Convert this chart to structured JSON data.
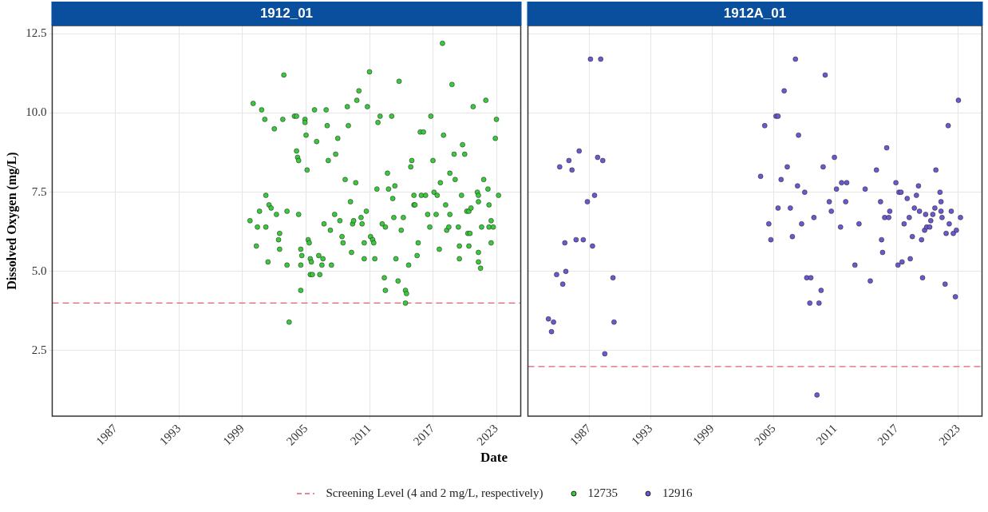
{
  "chart_data": [
    {
      "type": "scatter",
      "title": "1912_01",
      "xlabel": "Date",
      "ylabel": "Dissolved Oxygen (mg/L)",
      "xlim": [
        1981.0,
        2025.3
      ],
      "ylim": [
        0.43,
        12.76
      ],
      "xticks": [
        1987,
        1993,
        1999,
        2005,
        2011,
        2017,
        2023
      ],
      "yticks": [
        {
          "value": 2.5,
          "label": "2.5"
        },
        {
          "value": 5,
          "label": "5.0"
        },
        {
          "value": 7.5,
          "label": "7.5"
        },
        {
          "value": 10,
          "label": "10.0"
        },
        {
          "value": 12.5,
          "label": "12.5"
        }
      ],
      "grid": true,
      "legend": "bottom",
      "marker": "circle",
      "ref_lines": [
        {
          "axis": "y",
          "value": 4,
          "label": "Screening Level (4 and 2 mg/L, respectively)",
          "color": "#e06070",
          "line_style": "dashed"
        }
      ],
      "x": [
        2000.0,
        2000.8,
        2001.1,
        2002.0,
        2002.8,
        2002.9,
        2003.9,
        2004.1,
        2004.1,
        2004.2,
        2004.3,
        2004.9,
        2004.9,
        2005.0,
        2005.1,
        2005.8,
        2006.0,
        2006.9,
        2007.0,
        2007.1,
        2007.8,
        2008.0,
        2008.9,
        2009.0,
        2008.7,
        2009.2,
        2009.7,
        2009.8,
        2010.0,
        2010.8,
        2011.0,
        2011.7,
        2011.8,
        2012.0,
        2012.7,
        2012.8,
        2013.1,
        2013.2,
        2013.4,
        2013.8,
        2014.9,
        2015.0,
        2015.2,
        2015.2,
        2015.3,
        2015.8,
        2016.1,
        2015.9,
        2016.3,
        2016.8,
        2017.0,
        2017.1,
        2017.4,
        2017.7,
        2017.9,
        2018.0,
        2018.2,
        2018.6,
        2018.8,
        2019.0,
        2019.1,
        2019.7,
        2019.8,
        2020.0,
        2020.2,
        2020.4,
        2020.6,
        2020.8,
        2021.2,
        2021.3,
        2021.3,
        2021.8,
        2022.0,
        2022.2,
        2022.3,
        2022.9,
        2023.0,
        2023.2,
        2000.6,
        2001.2,
        2001.5,
        2001.7,
        2002.2,
        2003.2,
        2004.3,
        2007.7,
        2010.7,
        2013.3,
        2016.5,
        2017.3,
        2018.6,
        1999.7,
        2000.4,
        2000.3,
        2001.2,
        2001.4,
        2002.4,
        2002.5,
        2002.5,
        2003.2,
        2003.4,
        2004.5,
        2004.5,
        2004.5,
        2004.6,
        2005.2,
        2005.3,
        2005.4,
        2005.5,
        2005.4,
        2005.6,
        2006.2,
        2006.3,
        2006.5,
        2006.6,
        2006.7,
        2007.3,
        2007.4,
        2008.2,
        2008.4,
        2008.5,
        2009.3,
        2009.4,
        2009.5,
        2010.2,
        2010.3,
        2010.5,
        2010.5,
        2011.1,
        2011.3,
        2011.4,
        2011.5,
        2012.2,
        2012.4,
        2012.5,
        2012.5,
        2013.5,
        2013.7,
        2014.0,
        2014.2,
        2014.4,
        2014.5,
        2014.4,
        2014.7,
        2015.5,
        2015.6,
        2016.7,
        2017.6,
        2018.3,
        2018.5,
        2019.4,
        2019.5,
        2019.5,
        2020.3,
        2020.5,
        2020.4,
        2021.3,
        2021.3,
        2021.5,
        2021.6,
        2022.5,
        2022.3,
        2022.7,
        2022.5
      ],
      "series": [
        {
          "name": "12735",
          "color": "#3cc83c",
          "values": [
            10.3,
            10.1,
            9.8,
            9.5,
            9.8,
            11.2,
            9.9,
            9.9,
            8.8,
            8.6,
            8.5,
            9.8,
            9.7,
            9.3,
            8.2,
            10.1,
            9.1,
            10.1,
            9.6,
            8.5,
            8.7,
            9.2,
            10.2,
            9.6,
            7.9,
            7.2,
            7.8,
            10.4,
            10.7,
            10.2,
            11.3,
            7.6,
            9.7,
            9.9,
            8.1,
            7.6,
            9.9,
            7.3,
            7.7,
            11.0,
            8.3,
            8.5,
            7.4,
            7.1,
            7.1,
            9.4,
            9.4,
            7.4,
            7.4,
            9.9,
            8.5,
            7.5,
            7.4,
            7.8,
            12.2,
            9.3,
            7.1,
            8.1,
            10.9,
            8.7,
            7.9,
            7.4,
            9.0,
            8.7,
            6.9,
            6.9,
            7.0,
            10.2,
            7.5,
            7.4,
            7.2,
            7.9,
            10.4,
            7.6,
            7.1,
            9.2,
            9.8,
            7.4,
            6.9,
            7.4,
            7.1,
            7.0,
            6.8,
            6.9,
            6.8,
            6.8,
            6.9,
            6.7,
            6.8,
            6.8,
            6.8,
            6.6,
            6.4,
            5.8,
            6.4,
            5.3,
            6.0,
            6.2,
            5.7,
            5.2,
            3.4,
            5.7,
            5.2,
            4.4,
            5.5,
            6.0,
            5.9,
            5.4,
            5.3,
            4.9,
            4.9,
            5.5,
            4.9,
            5.2,
            5.4,
            6.5,
            6.3,
            5.2,
            6.6,
            6.1,
            5.9,
            5.6,
            6.5,
            6.6,
            6.7,
            6.5,
            5.9,
            5.4,
            6.1,
            6.0,
            5.9,
            5.4,
            6.5,
            4.8,
            6.4,
            4.4,
            5.4,
            4.7,
            6.3,
            6.7,
            4.4,
            4.3,
            4.0,
            5.2,
            5.5,
            5.9,
            6.4,
            5.7,
            6.3,
            6.4,
            6.4,
            5.8,
            5.4,
            6.2,
            6.2,
            5.8,
            5.6,
            5.3,
            5.1,
            6.4,
            6.6,
            6.4,
            6.4,
            5.9
          ]
        }
      ]
    },
    {
      "type": "scatter",
      "title": "1912A_01",
      "xlim": [
        1981.0,
        2025.3
      ],
      "ylim": [
        0.43,
        12.76
      ],
      "xticks": [
        1987,
        1993,
        1999,
        2005,
        2011,
        2017,
        2023
      ],
      "yticks": [
        2.5,
        5,
        7.5,
        10,
        12.5
      ],
      "tick_labels": "x",
      "grid": true,
      "legend": "bottom",
      "marker": "circle",
      "ref_lines": [
        {
          "axis": "y",
          "value": 2,
          "color": "#e06070",
          "line_style": "dashed"
        }
      ],
      "x": [
        1987.1,
        1988.1,
        1986.0,
        1985.0,
        1984.1,
        1985.3,
        1987.8,
        1988.3,
        1986.8,
        1987.5,
        2007.1,
        2010.0,
        2006.0,
        2005.2,
        2005.4,
        2004.1,
        2023.0,
        2022.0,
        2007.4,
        2016.0,
        2010.9,
        2006.3,
        2009.8,
        2003.7,
        2015.0,
        2020.8,
        2005.7,
        2007.3,
        2008.0,
        2011.1,
        2011.6,
        2012.1,
        2013.9,
        2016.9,
        2017.2,
        2017.4,
        2018.0,
        2018.9,
        2019.1,
        2021.2,
        2010.4,
        2012.0,
        2015.4,
        2021.3,
        2005.4,
        2006.6,
        2010.6,
        2016.3,
        2018.7,
        2019.2,
        2019.8,
        2020.5,
        2020.7,
        2021.3,
        2022.3,
        2008.9,
        2015.8,
        2016.2,
        2018.2,
        2021.4,
        2023.2,
        1984.6,
        1985.7,
        1986.4,
        1987.3,
        1983.8,
        1984.7,
        1984.4,
        1983.0,
        1983.5,
        1983.3,
        1989.3,
        1989.4,
        1988.5,
        2004.5,
        2004.7,
        2006.8,
        2007.7,
        2011.5,
        2013.3,
        2012.9,
        2014.4,
        2008.2,
        2008.6,
        2009.6,
        2008.5,
        2009.4,
        2009.2,
        2015.5,
        2015.6,
        2017.1,
        2017.5,
        2018.3,
        2017.7,
        2018.5,
        2019.4,
        2019.5,
        2019.7,
        2019.9,
        2020.2,
        2020.3,
        2021.8,
        2022.1,
        2022.5,
        2022.8,
        2021.7,
        2022.7
      ],
      "series": [
        {
          "name": "12916",
          "color": "#6a5acd",
          "values": [
            11.7,
            11.7,
            8.8,
            8.5,
            8.3,
            8.2,
            8.6,
            8.5,
            7.2,
            7.4,
            11.7,
            11.2,
            10.7,
            9.9,
            9.9,
            9.6,
            10.4,
            9.6,
            9.3,
            8.9,
            8.6,
            8.3,
            8.3,
            8.0,
            8.2,
            8.2,
            7.9,
            7.7,
            7.5,
            7.6,
            7.8,
            7.8,
            7.6,
            7.8,
            7.5,
            7.5,
            7.3,
            7.4,
            7.7,
            7.5,
            7.2,
            7.2,
            7.2,
            7.2,
            7.0,
            7.0,
            6.9,
            6.9,
            7.0,
            6.9,
            6.8,
            6.8,
            7.0,
            6.9,
            6.9,
            6.7,
            6.7,
            6.7,
            6.7,
            6.7,
            6.7,
            5.9,
            6.0,
            6.0,
            5.8,
            4.9,
            5.0,
            4.6,
            3.5,
            3.4,
            3.1,
            4.8,
            3.4,
            2.4,
            6.5,
            6.0,
            6.1,
            6.5,
            6.4,
            6.5,
            5.2,
            4.7,
            4.8,
            4.8,
            4.4,
            4.0,
            4.0,
            1.1,
            6.0,
            5.6,
            5.2,
            5.3,
            5.4,
            6.5,
            6.1,
            6.0,
            4.8,
            6.3,
            6.4,
            6.4,
            6.6,
            6.2,
            6.5,
            6.2,
            6.3,
            4.6,
            4.2
          ]
        }
      ]
    }
  ]
}
